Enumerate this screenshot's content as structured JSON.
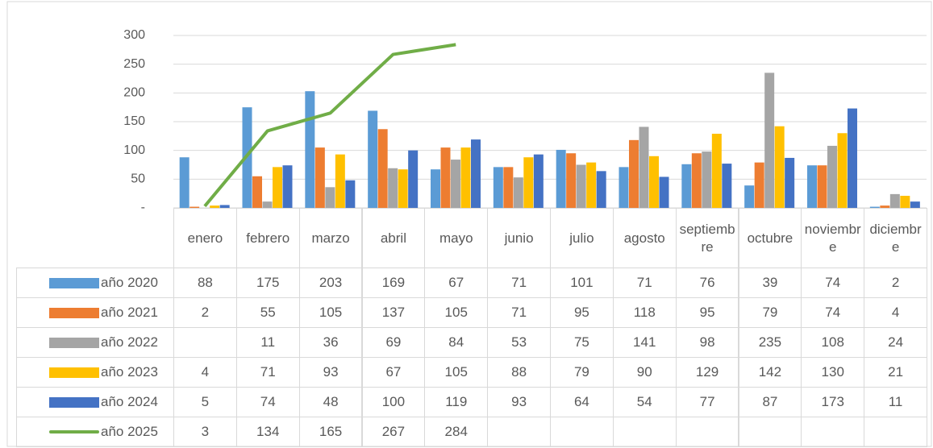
{
  "chart_data": {
    "type": "bar",
    "categories": [
      "enero",
      "febrero",
      "marzo",
      "abril",
      "mayo",
      "junio",
      "julio",
      "agosto",
      "septiembre",
      "octubre",
      "noviembre",
      "diciembre"
    ],
    "series": [
      {
        "name": "año 2020",
        "color": "#5b9bd5",
        "values": [
          88,
          175,
          203,
          169,
          67,
          71,
          101,
          71,
          76,
          39,
          74,
          2
        ]
      },
      {
        "name": "año 2021",
        "color": "#ed7d31",
        "values": [
          2,
          55,
          105,
          137,
          105,
          71,
          95,
          118,
          95,
          79,
          74,
          4
        ]
      },
      {
        "name": "año 2022",
        "color": "#a5a5a5",
        "values": [
          null,
          11,
          36,
          69,
          84,
          53,
          75,
          141,
          98,
          235,
          108,
          24
        ]
      },
      {
        "name": "año 2023",
        "color": "#ffc000",
        "values": [
          4,
          71,
          93,
          67,
          105,
          88,
          79,
          90,
          129,
          142,
          130,
          21
        ]
      },
      {
        "name": "año 2024",
        "color": "#4472c4",
        "values": [
          5,
          74,
          48,
          100,
          119,
          93,
          64,
          54,
          77,
          87,
          173,
          11
        ]
      },
      {
        "name": "año 2025",
        "color": "#70ad47",
        "type": "line",
        "values": [
          3,
          134,
          165,
          267,
          284,
          null,
          null,
          null,
          null,
          null,
          null,
          null
        ]
      }
    ],
    "ylim": [
      0,
      300
    ],
    "yticks": [
      {
        "value": 0,
        "label": "-"
      },
      50,
      100,
      150,
      200,
      250,
      300
    ],
    "grid": true
  }
}
